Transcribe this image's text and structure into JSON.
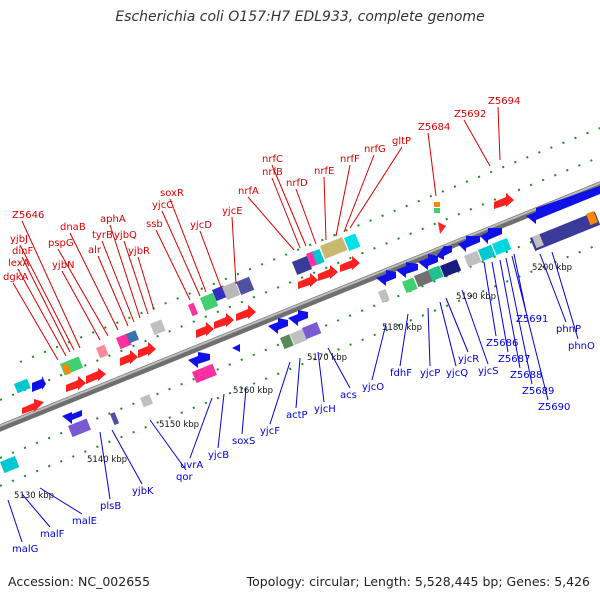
{
  "title": "Escherichia coli O157:H7 EDL933, complete genome",
  "footer": {
    "accession": "Accession: NC_002655",
    "summary": "Topology: circular; Length: 5,528,445 bp; Genes: 5,426"
  },
  "colors": {
    "forward_label": "#dd0000",
    "reverse_label": "#0000dd",
    "backbone": "#888888",
    "tick": "#118811"
  },
  "kbp_ticks": [
    "5130 kbp",
    "5140 kbp",
    "5150 kbp",
    "5160 kbp",
    "5170 kbp",
    "5180 kbp",
    "5190 kbp",
    "5200 kbp"
  ],
  "forward_genes": [
    "dgkA",
    "lexA",
    "dinF",
    "yjbJ",
    "Z5646",
    "yjbN",
    "pspG",
    "dnaB",
    "alr",
    "tyrB",
    "aphA",
    "yjbQ",
    "yjbR",
    "ssb",
    "yjcC",
    "soxR",
    "yjcD",
    "yjcE",
    "nrfA",
    "nrfB",
    "nrfC",
    "nrfD",
    "nrfE",
    "nrfF",
    "nrfG",
    "gltP",
    "Z5684",
    "Z5692",
    "Z5694"
  ],
  "reverse_genes": [
    "malG",
    "malF",
    "malE",
    "plsB",
    "yjbK",
    "qor",
    "uvrA",
    "yjcB",
    "soxS",
    "yjcF",
    "actP",
    "yjcH",
    "acs",
    "yjcO",
    "fdhF",
    "yjcP",
    "yjcQ",
    "yjcR",
    "yjcS",
    "Z5686",
    "Z5687",
    "Z5688",
    "Z5689",
    "Z5690",
    "Z5691",
    "phnP",
    "phnO"
  ]
}
